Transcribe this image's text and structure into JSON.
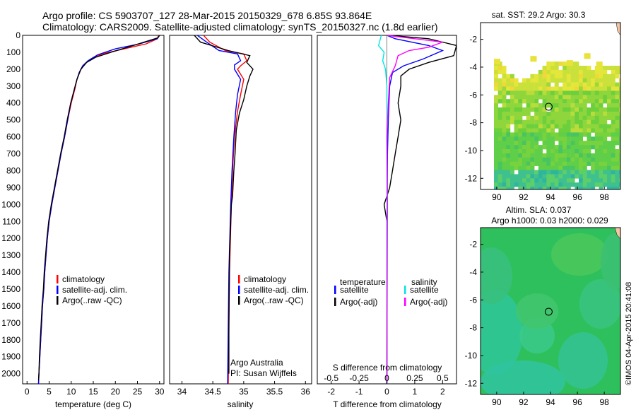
{
  "header": {
    "line1": "Argo profile: CS 5903707_127 28-Mar-2015 20150329_678 6.85S 93.864E",
    "line2": "Climatology: CARS2009. Satellite-adjusted climatology: synTS_20150327.nc (1.8d earlier)"
  },
  "colors": {
    "climatology": "#ff0000",
    "satellite": "#0000ff",
    "argo": "#000000",
    "satellite_sal": "#00e5e5",
    "argo_sal": "#ff00ff"
  },
  "depth_ticks": [
    0,
    100,
    200,
    300,
    400,
    500,
    600,
    700,
    800,
    900,
    1000,
    1100,
    1200,
    1300,
    1400,
    1500,
    1600,
    1700,
    1800,
    1900,
    2000
  ],
  "chart_data": [
    {
      "type": "line",
      "id": "temperature",
      "xlabel": "temperature (deg C)",
      "xlim": [
        -1,
        31
      ],
      "ylim": [
        2060,
        0
      ],
      "y_reversed": true,
      "xticks": [
        0,
        5,
        10,
        15,
        20,
        25,
        30
      ],
      "legend": [
        "climatology",
        "satellite-adj. clim.",
        "Argo(..raw -QC)"
      ],
      "legend_placement": "lower-center",
      "series": [
        {
          "name": "climatology",
          "color": "#ff0000",
          "points": [
            [
              29.8,
              0
            ],
            [
              29.5,
              20
            ],
            [
              27,
              50
            ],
            [
              22,
              80
            ],
            [
              17,
              110
            ],
            [
              14.5,
              140
            ],
            [
              13,
              170
            ],
            [
              12,
              210
            ],
            [
              11.3,
              260
            ],
            [
              10.8,
              320
            ],
            [
              10,
              400
            ],
            [
              9.2,
              500
            ],
            [
              8.5,
              600
            ],
            [
              7.7,
              700
            ],
            [
              7,
              800
            ],
            [
              6.3,
              900
            ],
            [
              5.6,
              1000
            ],
            [
              5,
              1100
            ],
            [
              4.6,
              1200
            ],
            [
              4.3,
              1300
            ],
            [
              4,
              1400
            ],
            [
              3.8,
              1500
            ],
            [
              3.5,
              1600
            ],
            [
              3.3,
              1700
            ],
            [
              3.1,
              1800
            ],
            [
              2.9,
              1900
            ],
            [
              2.7,
              2000
            ],
            [
              2.6,
              2060
            ]
          ]
        },
        {
          "name": "satellite-adj. clim.",
          "color": "#0000ff",
          "points": [
            [
              30,
              0
            ],
            [
              29.5,
              20
            ],
            [
              25.5,
              50
            ],
            [
              20,
              80
            ],
            [
              16,
              115
            ],
            [
              13.8,
              150
            ],
            [
              12.6,
              180
            ],
            [
              11.8,
              220
            ],
            [
              11.2,
              270
            ],
            [
              10.6,
              330
            ],
            [
              9.9,
              400
            ],
            [
              9.2,
              500
            ],
            [
              8.5,
              600
            ],
            [
              7.7,
              700
            ],
            [
              7,
              800
            ],
            [
              6.3,
              900
            ],
            [
              5.6,
              1000
            ],
            [
              5,
              1100
            ],
            [
              4.6,
              1200
            ],
            [
              4.3,
              1300
            ],
            [
              4,
              1400
            ],
            [
              3.8,
              1500
            ],
            [
              3.5,
              1600
            ],
            [
              3.3,
              1700
            ],
            [
              3.1,
              1800
            ],
            [
              2.9,
              1900
            ],
            [
              2.7,
              2000
            ],
            [
              2.6,
              2060
            ]
          ]
        },
        {
          "name": "Argo(..raw -QC)",
          "color": "#000000",
          "points": [
            [
              30,
              0
            ],
            [
              29.6,
              15
            ],
            [
              24,
              60
            ],
            [
              19,
              100
            ],
            [
              15.5,
              130
            ],
            [
              13.5,
              160
            ],
            [
              12.2,
              200
            ],
            [
              11.3,
              260
            ],
            [
              10.6,
              330
            ],
            [
              9.9,
              400
            ],
            [
              9.1,
              500
            ],
            [
              8.4,
              600
            ],
            [
              7.6,
              700
            ],
            [
              6.9,
              800
            ],
            [
              6.2,
              900
            ],
            [
              5.5,
              1000
            ],
            [
              4.9,
              1100
            ],
            [
              4.5,
              1200
            ],
            [
              4.2,
              1300
            ],
            [
              3.9,
              1400
            ],
            [
              3.7,
              1500
            ],
            [
              3.4,
              1600
            ],
            [
              3.2,
              1700
            ],
            [
              3,
              1800
            ],
            [
              2.8,
              1900
            ],
            [
              2.7,
              2000
            ],
            [
              2.6,
              2040
            ]
          ]
        }
      ]
    },
    {
      "type": "line",
      "id": "salinity",
      "xlabel": "salinity",
      "xlim": [
        33.8,
        36.1
      ],
      "ylim": [
        2060,
        0
      ],
      "y_reversed": true,
      "xticks": [
        34,
        34.5,
        35,
        35.5,
        36
      ],
      "xtick_labels": [
        "34",
        "34.5",
        "35",
        "35.5",
        "36"
      ],
      "legend": [
        "climatology",
        "satellite-adj. clim.",
        "Argo(..raw -QC)"
      ],
      "legend_placement": "lower-center",
      "annotation": [
        "Argo Australia",
        "PI: Susan Wijffels"
      ],
      "series": [
        {
          "name": "climatology",
          "color": "#ff0000",
          "points": [
            [
              34.35,
              0
            ],
            [
              34.45,
              40
            ],
            [
              34.7,
              90
            ],
            [
              35,
              110
            ],
            [
              35.05,
              150
            ],
            [
              34.95,
              180
            ],
            [
              34.9,
              200
            ],
            [
              35,
              260
            ],
            [
              34.95,
              350
            ],
            [
              34.9,
              450
            ],
            [
              34.85,
              600
            ],
            [
              34.82,
              800
            ],
            [
              34.8,
              1000
            ],
            [
              34.77,
              1400
            ],
            [
              34.75,
              2060
            ]
          ]
        },
        {
          "name": "satellite-adj. clim.",
          "color": "#0000ff",
          "points": [
            [
              34.25,
              0
            ],
            [
              34.4,
              40
            ],
            [
              34.6,
              90
            ],
            [
              34.9,
              110
            ],
            [
              34.95,
              150
            ],
            [
              34.85,
              175
            ],
            [
              34.85,
              200
            ],
            [
              34.95,
              260
            ],
            [
              34.9,
              350
            ],
            [
              34.87,
              450
            ],
            [
              34.84,
              600
            ],
            [
              34.81,
              800
            ],
            [
              34.79,
              1000
            ],
            [
              34.76,
              1400
            ],
            [
              34.74,
              2060
            ]
          ]
        },
        {
          "name": "Argo(..raw -QC)",
          "color": "#000000",
          "points": [
            [
              34.2,
              0
            ],
            [
              34.3,
              40
            ],
            [
              34.75,
              90
            ],
            [
              35.1,
              120
            ],
            [
              35.05,
              160
            ],
            [
              35.15,
              200
            ],
            [
              35.1,
              240
            ],
            [
              35.05,
              300
            ],
            [
              35,
              380
            ],
            [
              34.93,
              460
            ],
            [
              34.88,
              560
            ],
            [
              34.86,
              700
            ],
            [
              34.84,
              800
            ],
            [
              34.82,
              950
            ],
            [
              34.8,
              1000
            ],
            [
              34.77,
              1300
            ],
            [
              34.76,
              1700
            ],
            [
              34.76,
              2000
            ]
          ]
        }
      ]
    },
    {
      "type": "line",
      "id": "difference",
      "xlabel": "T difference from climatology",
      "xlabel_top": "S difference from climatology",
      "xlim": [
        -2.5,
        2.5
      ],
      "ylim": [
        2060,
        0
      ],
      "y_reversed": true,
      "xticks": [
        -2,
        -1,
        0,
        1,
        2
      ],
      "s_ticks": [
        -0.5,
        -0.25,
        0,
        0.25,
        0.5
      ],
      "s_tick_labels": [
        "-0.5",
        "-0.25",
        "0",
        "0.25",
        "0.5"
      ],
      "legend_titles": [
        "temperature",
        "salinity"
      ],
      "legend": [
        "satellite",
        "Argo(-adj)",
        "satellite",
        "Argo(-adj)"
      ],
      "legend_placement": "lower-center",
      "series": [
        {
          "name": "satellite",
          "color": "#0000ff",
          "points": [
            [
              0,
              0
            ],
            [
              0.3,
              20
            ],
            [
              1.5,
              60
            ],
            [
              2,
              90
            ],
            [
              1.3,
              140
            ],
            [
              0.6,
              180
            ],
            [
              0.2,
              220
            ],
            [
              0.1,
              300
            ],
            [
              0.05,
              500
            ],
            [
              0.02,
              700
            ],
            [
              0.01,
              1000
            ],
            [
              0,
              2060
            ]
          ]
        },
        {
          "name": "Argo(-adj)",
          "color": "#000000",
          "points": [
            [
              0.1,
              0
            ],
            [
              1.5,
              20
            ],
            [
              2.5,
              60
            ],
            [
              2.4,
              120
            ],
            [
              1.5,
              160
            ],
            [
              0.8,
              200
            ],
            [
              0.5,
              240
            ],
            [
              0.5,
              300
            ],
            [
              0.4,
              400
            ],
            [
              0.5,
              500
            ],
            [
              0.4,
              600
            ],
            [
              0.3,
              700
            ],
            [
              0.2,
              800
            ],
            [
              0.1,
              900
            ],
            [
              -0.1,
              1000
            ],
            [
              0,
              1100
            ],
            [
              0,
              2060
            ]
          ]
        },
        {
          "name": "satellite",
          "color": "#00e5e5",
          "points": [
            [
              -0.2,
              0
            ],
            [
              -0.3,
              60
            ],
            [
              -0.1,
              100
            ],
            [
              -0.15,
              150
            ],
            [
              -0.05,
              200
            ],
            [
              0,
              300
            ],
            [
              0,
              2060
            ]
          ]
        },
        {
          "name": "Argo(-adj)",
          "color": "#ff00ff",
          "points": [
            [
              0,
              0
            ],
            [
              2,
              40
            ],
            [
              1.5,
              70
            ],
            [
              0.8,
              90
            ],
            [
              0.4,
              120
            ],
            [
              0.3,
              180
            ],
            [
              0.1,
              250
            ],
            [
              0.05,
              400
            ],
            [
              0,
              600
            ],
            [
              0.02,
              1000
            ],
            [
              0,
              2060
            ]
          ]
        }
      ]
    },
    {
      "type": "heatmap",
      "id": "sst_map",
      "title": "sat. SST: 29.2  Argo: 30.3",
      "xlim": [
        88.8,
        99.2
      ],
      "ylim": [
        -12.8,
        -0.8
      ],
      "xticks": [
        90,
        92,
        94,
        96,
        98
      ],
      "yticks": [
        -2,
        -4,
        -6,
        -8,
        -10,
        -12
      ],
      "float_position": [
        93.864,
        -6.85
      ],
      "data_coverage": {
        "lon": [
          89.8,
          99.2
        ],
        "lat": [
          -12.8,
          -3.3
        ]
      }
    },
    {
      "type": "heatmap",
      "id": "sla_map",
      "title": "Altim. SLA: 0.037",
      "subtitle": "Argo h1000: 0.03 h2000: 0.029",
      "xlim": [
        88.8,
        99.2
      ],
      "ylim": [
        -12.8,
        -0.8
      ],
      "xticks": [
        90,
        92,
        94,
        96,
        98
      ],
      "yticks": [
        -2,
        -4,
        -6,
        -8,
        -10,
        -12
      ],
      "float_position": [
        93.864,
        -6.85
      ]
    }
  ],
  "side_label": "©IMOS 04-Apr-2015 20:41:08"
}
